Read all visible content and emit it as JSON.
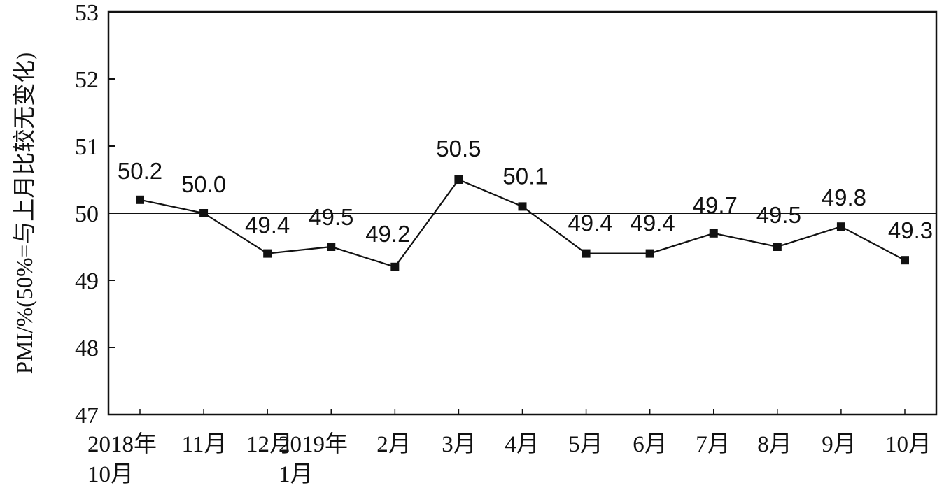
{
  "chart_data": {
    "type": "line",
    "ylabel": "PMI/%(50%=与上月比较无变化)",
    "ylim": [
      47,
      53
    ],
    "yticks": [
      "47",
      "48",
      "49",
      "50",
      "51",
      "52",
      "53"
    ],
    "reference_line": 50,
    "categories": [
      [
        "2018年",
        "10月"
      ],
      [
        "11月"
      ],
      [
        "12月"
      ],
      [
        "2019年",
        "1月"
      ],
      [
        "2月"
      ],
      [
        "3月"
      ],
      [
        "4月"
      ],
      [
        "5月"
      ],
      [
        "6月"
      ],
      [
        "7月"
      ],
      [
        "8月"
      ],
      [
        "9月"
      ],
      [
        "10月"
      ]
    ],
    "values": [
      50.2,
      50.0,
      49.4,
      49.5,
      49.2,
      50.5,
      50.1,
      49.4,
      49.4,
      49.7,
      49.5,
      49.8,
      49.3
    ],
    "value_labels": [
      "50.2",
      "50.0",
      "49.4",
      "49.5",
      "49.2",
      "50.5",
      "50.1",
      "49.4",
      "49.4",
      "49.7",
      "49.5",
      "49.8",
      "49.3"
    ],
    "grid": false,
    "legend": "none",
    "marker": "square",
    "line_color": "#111111"
  }
}
